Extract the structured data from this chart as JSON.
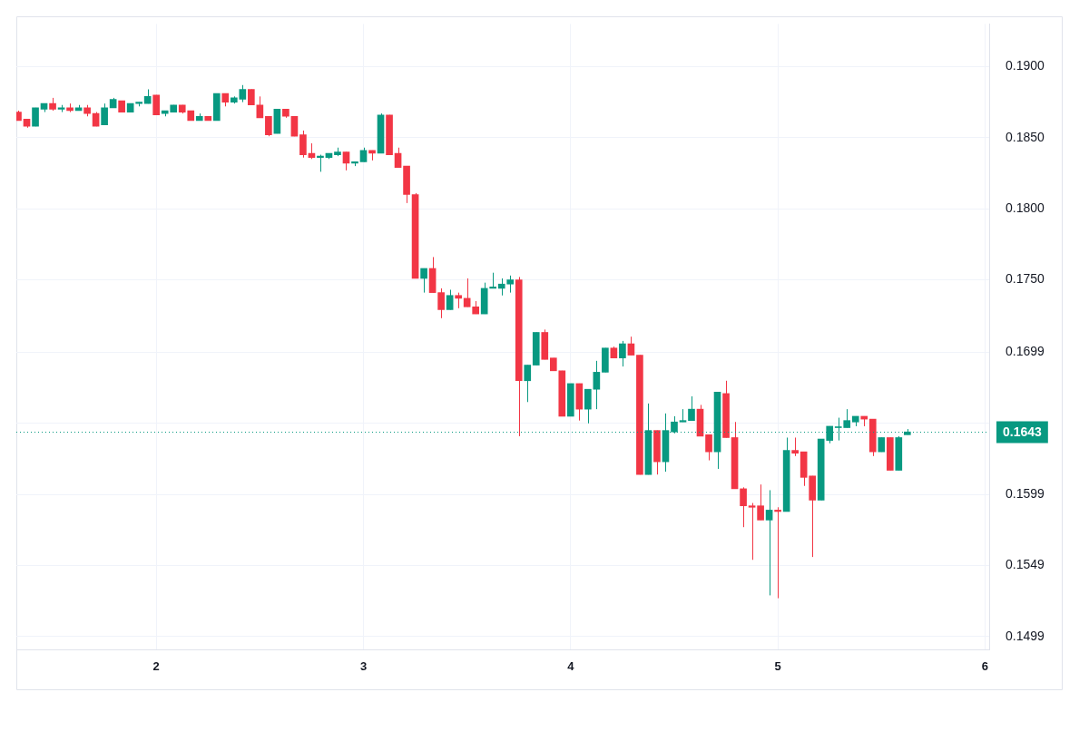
{
  "chart_data": {
    "type": "candlestick",
    "x": [
      1.3333,
      1.375,
      1.4167,
      1.4583,
      1.5,
      1.5417,
      1.5833,
      1.625,
      1.6667,
      1.7083,
      1.75,
      1.7917,
      1.8333,
      1.875,
      1.9167,
      1.9583,
      2,
      2.0417,
      2.0833,
      2.125,
      2.1667,
      2.2083,
      2.25,
      2.2917,
      2.3333,
      2.375,
      2.4167,
      2.4583,
      2.5,
      2.5417,
      2.5833,
      2.625,
      2.6667,
      2.7083,
      2.75,
      2.7917,
      2.8333,
      2.875,
      2.9167,
      2.9583,
      3,
      3.0417,
      3.0833,
      3.125,
      3.1667,
      3.2083,
      3.25,
      3.2917,
      3.3333,
      3.375,
      3.4167,
      3.4583,
      3.5,
      3.5417,
      3.5833,
      3.625,
      3.6667,
      3.7083,
      3.75,
      3.7917,
      3.8333,
      3.875,
      3.9167,
      3.9583,
      4,
      4.0417,
      4.0833,
      4.125,
      4.1667,
      4.2083,
      4.25,
      4.2917,
      4.3333,
      4.375,
      4.4167,
      4.4583,
      4.5,
      4.5417,
      4.5833,
      4.625,
      4.6667,
      4.7083,
      4.75,
      4.7917,
      4.8333,
      4.875,
      4.9167,
      4.9583,
      5,
      5.0417,
      5.0833,
      5.125,
      5.1667,
      5.2083,
      5.25,
      5.2917,
      5.3333,
      5.375,
      5.4167,
      5.4583,
      5.5,
      5.5417,
      5.5833,
      5.625
    ],
    "ohlc": [
      [
        0.1868,
        0.1869,
        0.1862,
        0.1862
      ],
      [
        0.1863,
        0.1863,
        0.1857,
        0.1858
      ],
      [
        0.1858,
        0.1871,
        0.1858,
        0.1871
      ],
      [
        0.187,
        0.1874,
        0.1868,
        0.1874
      ],
      [
        0.1874,
        0.1878,
        0.1869,
        0.187
      ],
      [
        0.187,
        0.1873,
        0.1868,
        0.1871
      ],
      [
        0.1871,
        0.1874,
        0.1868,
        0.1869
      ],
      [
        0.1869,
        0.1873,
        0.1869,
        0.1871
      ],
      [
        0.1871,
        0.1873,
        0.1865,
        0.1867
      ],
      [
        0.1867,
        0.1868,
        0.1858,
        0.1858
      ],
      [
        0.1859,
        0.1874,
        0.1859,
        0.1871
      ],
      [
        0.1871,
        0.1878,
        0.1871,
        0.1877
      ],
      [
        0.1876,
        0.1876,
        0.1868,
        0.1868
      ],
      [
        0.1868,
        0.1874,
        0.1868,
        0.1874
      ],
      [
        0.1874,
        0.1875,
        0.1872,
        0.1875
      ],
      [
        0.1874,
        0.1884,
        0.1874,
        0.1879
      ],
      [
        0.188,
        0.188,
        0.1866,
        0.1866
      ],
      [
        0.1867,
        0.1869,
        0.1865,
        0.1869
      ],
      [
        0.1868,
        0.1873,
        0.1868,
        0.1873
      ],
      [
        0.1873,
        0.1873,
        0.1867,
        0.1868
      ],
      [
        0.1869,
        0.1869,
        0.1862,
        0.1862
      ],
      [
        0.1862,
        0.1867,
        0.1862,
        0.1865
      ],
      [
        0.1865,
        0.1865,
        0.1862,
        0.1862
      ],
      [
        0.1862,
        0.1881,
        0.1862,
        0.1881
      ],
      [
        0.1881,
        0.1881,
        0.1872,
        0.1875
      ],
      [
        0.1875,
        0.1879,
        0.1874,
        0.1878
      ],
      [
        0.1877,
        0.1887,
        0.1875,
        0.1884
      ],
      [
        0.1884,
        0.1884,
        0.1873,
        0.1873
      ],
      [
        0.1873,
        0.1879,
        0.1864,
        0.1864
      ],
      [
        0.1865,
        0.1865,
        0.1851,
        0.1852
      ],
      [
        0.1853,
        0.187,
        0.1853,
        0.187
      ],
      [
        0.187,
        0.187,
        0.1864,
        0.1865
      ],
      [
        0.1865,
        0.1865,
        0.1851,
        0.1851
      ],
      [
        0.1852,
        0.1855,
        0.1836,
        0.1838
      ],
      [
        0.1839,
        0.1846,
        0.1835,
        0.1836
      ],
      [
        0.1836,
        0.1838,
        0.1826,
        0.1837
      ],
      [
        0.1836,
        0.1839,
        0.1835,
        0.1839
      ],
      [
        0.1838,
        0.1843,
        0.1837,
        0.184
      ],
      [
        0.184,
        0.184,
        0.1827,
        0.1832
      ],
      [
        0.1832,
        0.1833,
        0.183,
        0.1833
      ],
      [
        0.1833,
        0.1843,
        0.1833,
        0.1841
      ],
      [
        0.1841,
        0.1841,
        0.1834,
        0.1839
      ],
      [
        0.1839,
        0.1867,
        0.1839,
        0.1866
      ],
      [
        0.1866,
        0.1866,
        0.1838,
        0.1838
      ],
      [
        0.1839,
        0.1843,
        0.1829,
        0.1829
      ],
      [
        0.183,
        0.183,
        0.1804,
        0.181
      ],
      [
        0.181,
        0.1811,
        0.1751,
        0.1751
      ],
      [
        0.1751,
        0.1758,
        0.1741,
        0.1758
      ],
      [
        0.1758,
        0.1766,
        0.1741,
        0.1741
      ],
      [
        0.1741,
        0.1744,
        0.1723,
        0.1729
      ],
      [
        0.1729,
        0.1743,
        0.1729,
        0.1739
      ],
      [
        0.1739,
        0.1741,
        0.173,
        0.1737
      ],
      [
        0.1737,
        0.1751,
        0.1731,
        0.1731
      ],
      [
        0.1731,
        0.1735,
        0.1726,
        0.1726
      ],
      [
        0.1726,
        0.1748,
        0.1726,
        0.1744
      ],
      [
        0.1744,
        0.1755,
        0.1744,
        0.1745
      ],
      [
        0.1744,
        0.1751,
        0.1739,
        0.1747
      ],
      [
        0.1747,
        0.1753,
        0.1741,
        0.175
      ],
      [
        0.175,
        0.1752,
        0.164,
        0.1679
      ],
      [
        0.1679,
        0.169,
        0.1664,
        0.169
      ],
      [
        0.169,
        0.1713,
        0.169,
        0.1713
      ],
      [
        0.1713,
        0.1715,
        0.1694,
        0.1694
      ],
      [
        0.1695,
        0.1695,
        0.1686,
        0.1686
      ],
      [
        0.1686,
        0.1686,
        0.1654,
        0.1654
      ],
      [
        0.1654,
        0.1677,
        0.1654,
        0.1677
      ],
      [
        0.1677,
        0.1677,
        0.1651,
        0.1659
      ],
      [
        0.1659,
        0.1673,
        0.1649,
        0.1673
      ],
      [
        0.1673,
        0.1693,
        0.1659,
        0.1685
      ],
      [
        0.1685,
        0.1702,
        0.1685,
        0.1702
      ],
      [
        0.1702,
        0.1703,
        0.1695,
        0.1695
      ],
      [
        0.1695,
        0.1707,
        0.1689,
        0.1705
      ],
      [
        0.1705,
        0.171,
        0.1697,
        0.1697
      ],
      [
        0.1697,
        0.1697,
        0.1613,
        0.1613
      ],
      [
        0.1613,
        0.1663,
        0.1613,
        0.1644
      ],
      [
        0.1644,
        0.1644,
        0.1613,
        0.1622
      ],
      [
        0.1622,
        0.1656,
        0.1615,
        0.1644
      ],
      [
        0.1643,
        0.1654,
        0.1642,
        0.165
      ],
      [
        0.165,
        0.1659,
        0.165,
        0.1651
      ],
      [
        0.1651,
        0.1668,
        0.1651,
        0.1659
      ],
      [
        0.1659,
        0.1662,
        0.164,
        0.164
      ],
      [
        0.1641,
        0.1641,
        0.1623,
        0.1629
      ],
      [
        0.1629,
        0.1671,
        0.1617,
        0.1671
      ],
      [
        0.167,
        0.1679,
        0.1639,
        0.1639
      ],
      [
        0.1639,
        0.165,
        0.1603,
        0.1603
      ],
      [
        0.1603,
        0.1604,
        0.1576,
        0.1591
      ],
      [
        0.1591,
        0.1593,
        0.1553,
        0.159
      ],
      [
        0.1591,
        0.1606,
        0.1581,
        0.1581
      ],
      [
        0.1581,
        0.1602,
        0.1528,
        0.1588
      ],
      [
        0.1588,
        0.159,
        0.1526,
        0.1587
      ],
      [
        0.1587,
        0.1639,
        0.1587,
        0.163
      ],
      [
        0.163,
        0.1639,
        0.1626,
        0.1628
      ],
      [
        0.1629,
        0.1629,
        0.1605,
        0.1611
      ],
      [
        0.1612,
        0.1612,
        0.1555,
        0.1595
      ],
      [
        0.1595,
        0.1638,
        0.1595,
        0.1638
      ],
      [
        0.1637,
        0.1647,
        0.1635,
        0.1647
      ],
      [
        0.1646,
        0.1653,
        0.1637,
        0.1646
      ],
      [
        0.1646,
        0.1659,
        0.1646,
        0.1651
      ],
      [
        0.165,
        0.1654,
        0.1647,
        0.1654
      ],
      [
        0.1654,
        0.1654,
        0.1647,
        0.1652
      ],
      [
        0.1652,
        0.1652,
        0.1626,
        0.1629
      ],
      [
        0.1629,
        0.1639,
        0.1629,
        0.1639
      ],
      [
        0.1639,
        0.1639,
        0.1616,
        0.1616
      ],
      [
        0.1616,
        0.164,
        0.1616,
        0.1639
      ],
      [
        0.1641,
        0.1645,
        0.1641,
        0.1643
      ]
    ],
    "colors": [
      "#f23645",
      "#f23645",
      "#089981",
      "#089981",
      "#f23645",
      "#089981",
      "#f23645",
      "#089981",
      "#f23645",
      "#f23645",
      "#089981",
      "#089981",
      "#f23645",
      "#089981",
      "#089981",
      "#089981",
      "#f23645",
      "#089981",
      "#089981",
      "#f23645",
      "#f23645",
      "#089981",
      "#f23645",
      "#089981",
      "#f23645",
      "#089981",
      "#089981",
      "#f23645",
      "#f23645",
      "#f23645",
      "#089981",
      "#f23645",
      "#f23645",
      "#f23645",
      "#f23645",
      "#089981",
      "#089981",
      "#089981",
      "#f23645",
      "#089981",
      "#089981",
      "#f23645",
      "#089981",
      "#f23645",
      "#f23645",
      "#f23645",
      "#f23645",
      "#089981",
      "#f23645",
      "#f23645",
      "#089981",
      "#f23645",
      "#f23645",
      "#f23645",
      "#089981",
      "#089981",
      "#089981",
      "#089981",
      "#f23645",
      "#089981",
      "#089981",
      "#f23645",
      "#f23645",
      "#f23645",
      "#089981",
      "#f23645",
      "#089981",
      "#089981",
      "#089981",
      "#f23645",
      "#089981",
      "#f23645",
      "#f23645",
      "#089981",
      "#f23645",
      "#089981",
      "#089981",
      "#089981",
      "#089981",
      "#f23645",
      "#f23645",
      "#089981",
      "#f23645",
      "#f23645",
      "#f23645",
      "#f23645",
      "#f23645",
      "#089981",
      "#f23645",
      "#089981",
      "#f23645",
      "#f23645",
      "#f23645",
      "#089981",
      "#089981",
      "#089981",
      "#089981",
      "#089981",
      "#f23645",
      "#f23645",
      "#089981",
      "#f23645",
      "#089981",
      "#089981"
    ],
    "xlim": [
      1.3246,
      6.02
    ],
    "xticks": [
      2,
      3,
      4,
      5,
      6
    ],
    "ylim": [
      0.149,
      0.193
    ],
    "yticks": [
      0.1499,
      0.1549,
      0.1599,
      {
        "value": 0.1649,
        "label": null
      },
      0.1699,
      {
        "value": 0.175,
        "label": "0.1750"
      },
      {
        "value": 0.18,
        "label": "0.1800"
      },
      {
        "value": 0.185,
        "label": "0.1850"
      },
      {
        "value": 0.19,
        "label": "0.1900"
      }
    ],
    "ref_lines": [
      {
        "axis": "y",
        "value": 0.1643,
        "label": "0.1643",
        "color": "#089981",
        "line_style": "dotted"
      }
    ],
    "grid": true,
    "legend": false
  }
}
